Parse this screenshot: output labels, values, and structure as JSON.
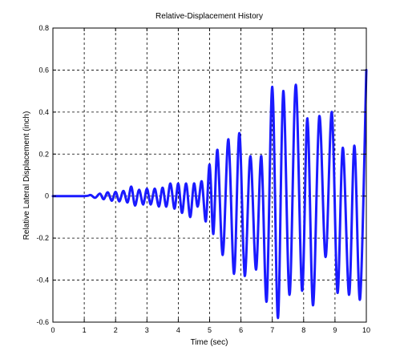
{
  "chart_data": {
    "type": "line",
    "title": "Relative-Displacement History",
    "xlabel": "Time (sec)",
    "ylabel": "Relative Lateral Displacement (inch)",
    "xlim": [
      0,
      10
    ],
    "ylim": [
      -0.6,
      0.8
    ],
    "xticks": [
      "0",
      "1",
      "2",
      "3",
      "4",
      "5",
      "6",
      "7",
      "8",
      "9",
      "10"
    ],
    "yticks": [
      "-0.6",
      "-0.4",
      "-0.2",
      "0",
      "0.2",
      "0.4",
      "0.6",
      "0.8"
    ],
    "grid": true,
    "line_color": "#1a1aff",
    "series": [
      {
        "x": [
          0,
          1.0,
          1.2,
          1.35,
          1.5,
          1.62,
          1.75,
          1.88,
          2.0,
          2.12,
          2.25,
          2.38,
          2.5,
          2.62,
          2.75,
          2.88,
          3.0,
          3.12,
          3.25,
          3.38,
          3.5,
          3.62,
          3.75,
          3.88,
          4.0,
          4.12,
          4.25,
          4.38,
          4.5,
          4.62,
          4.75,
          4.88,
          5.0,
          5.12,
          5.25,
          5.42,
          5.6,
          5.78,
          5.95,
          6.12,
          6.3,
          6.48,
          6.65,
          6.82,
          7.0,
          7.18,
          7.35,
          7.55,
          7.75,
          7.95,
          8.12,
          8.3,
          8.5,
          8.7,
          8.9,
          9.08,
          9.25,
          9.45,
          9.62,
          9.8,
          10.0
        ],
        "y": [
          0.0,
          0.0,
          0.005,
          -0.008,
          0.012,
          -0.015,
          0.018,
          -0.022,
          0.02,
          -0.025,
          0.025,
          -0.03,
          0.045,
          -0.045,
          0.03,
          -0.04,
          0.035,
          -0.04,
          0.035,
          -0.05,
          0.04,
          -0.05,
          0.06,
          -0.06,
          0.06,
          -0.08,
          0.06,
          -0.1,
          0.06,
          -0.05,
          0.07,
          -0.12,
          0.15,
          -0.18,
          0.22,
          -0.28,
          0.27,
          -0.37,
          0.3,
          -0.38,
          0.19,
          -0.35,
          0.19,
          -0.5,
          0.52,
          -0.58,
          0.5,
          -0.47,
          0.53,
          -0.45,
          0.37,
          -0.52,
          0.38,
          -0.29,
          0.4,
          -0.46,
          0.23,
          -0.47,
          0.24,
          -0.49,
          0.6
        ]
      }
    ]
  }
}
